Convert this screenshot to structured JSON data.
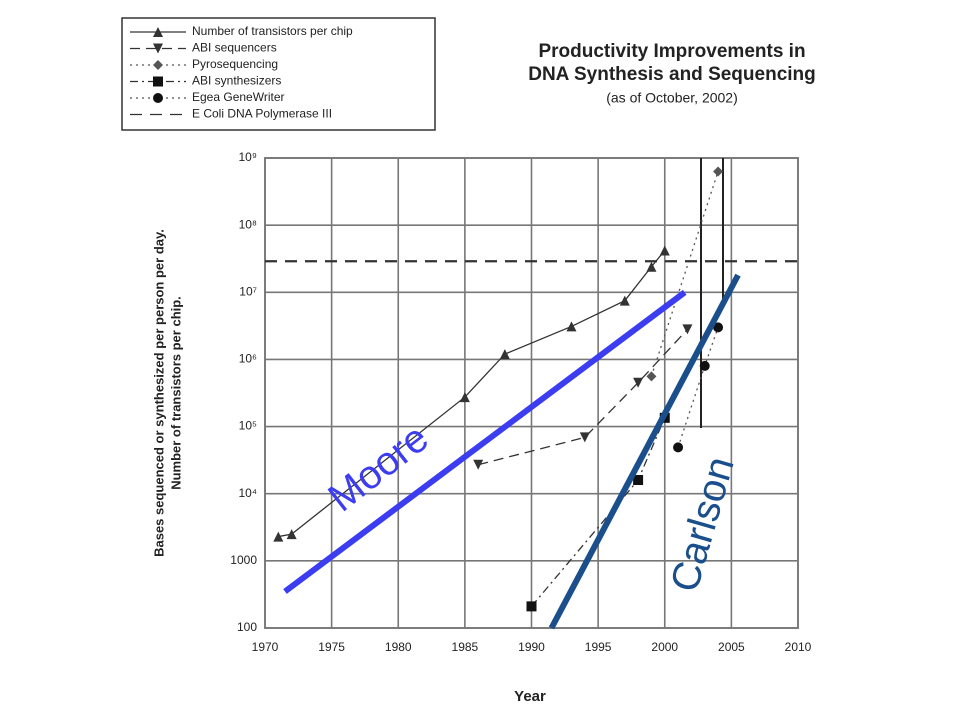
{
  "chart_data": {
    "type": "line",
    "title": [
      "Productivity Improvements in",
      "DNA Synthesis and Sequencing"
    ],
    "subtitle": "(as of October, 2002)",
    "xlabel": "Year",
    "ylabel": [
      "Bases sequenced or synthesized per person per day.",
      "Number of transistors per chip."
    ],
    "xlim": [
      1970,
      2010
    ],
    "xticks": [
      1970,
      1975,
      1980,
      1985,
      1990,
      1995,
      2000,
      2005,
      2010
    ],
    "ylim": [
      100,
      1000000000
    ],
    "yscale": "log",
    "yticks": [
      100,
      1000,
      {
        "value": 10000,
        "label": "10⁴"
      },
      {
        "value": 100000,
        "label": "10⁵"
      },
      {
        "value": 1000000,
        "label": "10⁶"
      },
      {
        "value": 10000000,
        "label": "10⁷"
      },
      {
        "value": 100000000,
        "label": "10⁸"
      },
      {
        "value": 1000000000,
        "label": "10⁹"
      }
    ],
    "grid": true,
    "legend": "top-left",
    "series": [
      {
        "name": "Number of transistors per chip",
        "color": "#333333",
        "line_style": "solid",
        "marker": "triangle-up",
        "x": [
          1971,
          1972,
          1985,
          1988,
          1993,
          1997,
          1999,
          2000
        ],
        "values": [
          2300,
          2500,
          275000,
          1200000,
          3100000,
          7500000,
          24000000,
          42000000
        ]
      },
      {
        "name": "ABI sequencers",
        "color": "#333333",
        "line_style": "dashed",
        "marker": "triangle-down",
        "x": [
          1986,
          1994,
          1998,
          2001.7
        ],
        "values": [
          27000,
          69000,
          450000,
          2800000
        ]
      },
      {
        "name": "Pyrosequencing",
        "color": "#555555",
        "line_style": "dotted",
        "marker": "diamond",
        "x": [
          1999,
          2004
        ],
        "values": [
          560000,
          630000000
        ]
      },
      {
        "name": "ABI synthesizers",
        "color": "#333333",
        "line_style": "dashdot",
        "marker": "square",
        "x": [
          1990,
          1998,
          2000
        ],
        "values": [
          210,
          16000,
          135000
        ]
      },
      {
        "name": "Egea GeneWriter",
        "color": "#555555",
        "line_style": "dotted",
        "marker": "circle",
        "x": [
          2001,
          2003,
          2004
        ],
        "values": [
          49000,
          800000,
          3000000
        ]
      },
      {
        "name": "E Coli DNA Polymerase III",
        "color": "#333333",
        "line_style": "longdash",
        "marker": "none",
        "x": [
          1970,
          2010
        ],
        "values": [
          29000000,
          29000000
        ]
      }
    ],
    "trend_lines": [
      {
        "name": "Moore",
        "color": "#3c3cf0",
        "x": [
          1971.5,
          2001.5
        ],
        "values": [
          350,
          10000000
        ]
      },
      {
        "name": "Carlson",
        "color": "#1b4f8c",
        "x": [
          1991.5,
          2005.5
        ],
        "values": [
          100,
          18000000
        ]
      }
    ]
  }
}
